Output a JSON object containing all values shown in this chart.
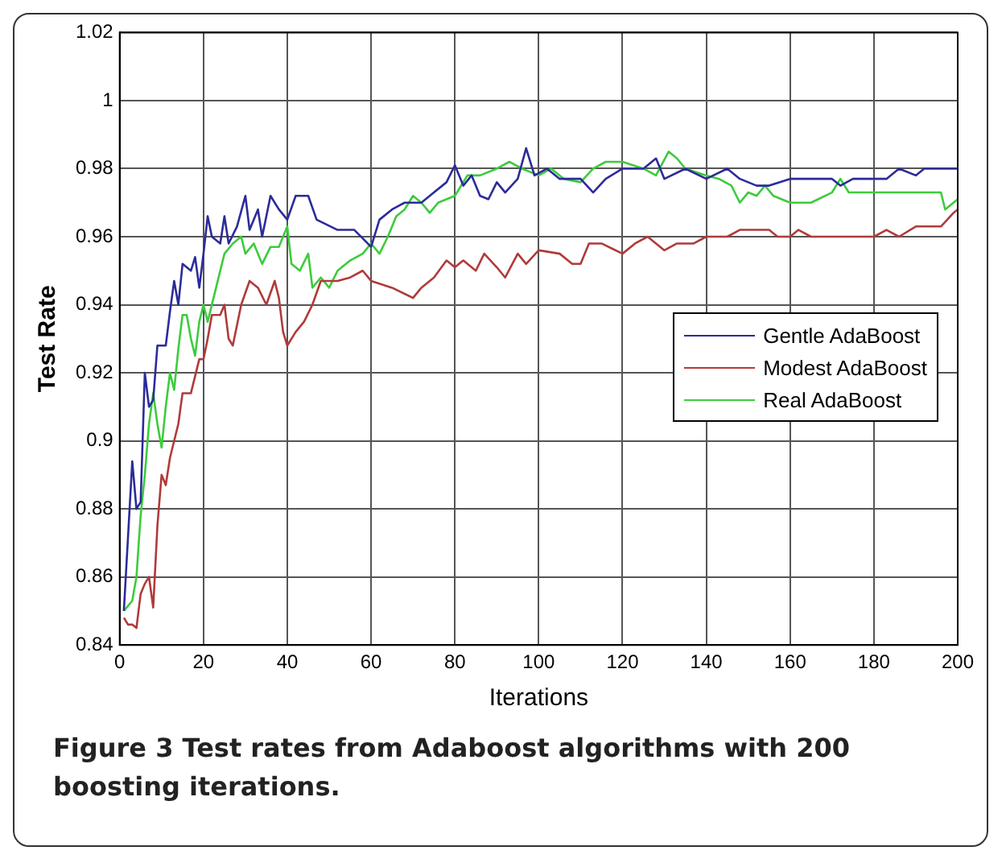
{
  "chart_data": {
    "type": "line",
    "xlabel": "Iterations",
    "ylabel": "Test Rate",
    "annotations": [
      "Figure 3 Test rates from Adaboost algorithms with 200 boosting iterations."
    ],
    "xlim": [
      0,
      200
    ],
    "xticks": [
      0,
      20,
      40,
      60,
      80,
      100,
      120,
      140,
      160,
      180,
      200
    ],
    "ylim": [
      0.84,
      1.02
    ],
    "yticks": [
      0.84,
      0.86,
      0.88,
      0.9,
      0.92,
      0.94,
      0.96,
      0.98,
      1,
      1.02
    ],
    "grid": true,
    "legend": "right",
    "marker": "none",
    "line_style": "solid",
    "series": [
      {
        "name": "Gentle AdaBoost",
        "color": "#2b2b9a",
        "x": [
          1,
          3,
          4,
          5,
          6,
          7,
          8,
          9,
          11,
          12,
          13,
          14,
          15,
          17,
          18,
          19,
          20,
          21,
          22,
          24,
          25,
          26,
          28,
          30,
          31,
          33,
          34,
          36,
          38,
          40,
          42,
          45,
          47,
          52,
          56,
          60,
          62,
          65,
          68,
          72,
          75,
          78,
          80,
          82,
          84,
          86,
          88,
          90,
          92,
          95,
          97,
          99,
          102,
          105,
          110,
          113,
          116,
          120,
          125,
          128,
          130,
          135,
          140,
          145,
          148,
          152,
          155,
          160,
          170,
          172,
          175,
          183,
          186,
          190,
          192,
          200
        ],
        "values": [
          0.85,
          0.894,
          0.88,
          0.882,
          0.92,
          0.91,
          0.912,
          0.928,
          0.928,
          0.938,
          0.947,
          0.94,
          0.952,
          0.95,
          0.954,
          0.945,
          0.955,
          0.966,
          0.96,
          0.958,
          0.966,
          0.958,
          0.963,
          0.972,
          0.962,
          0.968,
          0.96,
          0.972,
          0.968,
          0.965,
          0.972,
          0.972,
          0.965,
          0.962,
          0.962,
          0.957,
          0.965,
          0.968,
          0.97,
          0.97,
          0.973,
          0.976,
          0.981,
          0.975,
          0.978,
          0.972,
          0.971,
          0.976,
          0.973,
          0.977,
          0.986,
          0.978,
          0.98,
          0.977,
          0.977,
          0.973,
          0.977,
          0.98,
          0.98,
          0.983,
          0.977,
          0.98,
          0.977,
          0.98,
          0.977,
          0.975,
          0.975,
          0.977,
          0.977,
          0.975,
          0.977,
          0.977,
          0.98,
          0.978,
          0.98,
          0.98
        ]
      },
      {
        "name": "Modest AdaBoost",
        "color": "#b03a3a",
        "x": [
          1,
          2,
          3,
          4,
          5,
          6,
          7,
          8,
          9,
          10,
          11,
          12,
          14,
          15,
          17,
          19,
          20,
          21,
          22,
          24,
          25,
          26,
          27,
          29,
          31,
          33,
          35,
          37,
          38,
          39,
          40,
          42,
          44,
          46,
          48,
          52,
          55,
          58,
          60,
          65,
          70,
          72,
          75,
          78,
          80,
          82,
          85,
          87,
          90,
          92,
          95,
          97,
          100,
          105,
          108,
          110,
          112,
          115,
          120,
          123,
          126,
          130,
          133,
          137,
          140,
          145,
          148,
          155,
          157,
          160,
          162,
          165,
          180,
          183,
          186,
          190,
          196,
          199,
          200
        ],
        "values": [
          0.848,
          0.846,
          0.846,
          0.845,
          0.855,
          0.858,
          0.86,
          0.851,
          0.875,
          0.89,
          0.887,
          0.895,
          0.905,
          0.914,
          0.914,
          0.924,
          0.924,
          0.93,
          0.937,
          0.937,
          0.94,
          0.93,
          0.928,
          0.94,
          0.947,
          0.945,
          0.94,
          0.947,
          0.942,
          0.932,
          0.928,
          0.932,
          0.935,
          0.94,
          0.947,
          0.947,
          0.948,
          0.95,
          0.947,
          0.945,
          0.942,
          0.945,
          0.948,
          0.953,
          0.951,
          0.953,
          0.95,
          0.955,
          0.951,
          0.948,
          0.955,
          0.952,
          0.956,
          0.955,
          0.952,
          0.952,
          0.958,
          0.958,
          0.955,
          0.958,
          0.96,
          0.956,
          0.958,
          0.958,
          0.96,
          0.96,
          0.962,
          0.962,
          0.96,
          0.96,
          0.962,
          0.96,
          0.96,
          0.962,
          0.96,
          0.963,
          0.963,
          0.967,
          0.968
        ]
      },
      {
        "name": "Real AdaBoost",
        "color": "#3ccc3c",
        "x": [
          1,
          3,
          4,
          5,
          6,
          7,
          8,
          9,
          10,
          11,
          12,
          13,
          14,
          15,
          16,
          17,
          18,
          19,
          20,
          21,
          23,
          24,
          25,
          27,
          29,
          30,
          32,
          34,
          36,
          38,
          40,
          41,
          43,
          45,
          46,
          48,
          50,
          52,
          55,
          58,
          60,
          62,
          64,
          66,
          68,
          70,
          72,
          74,
          76,
          80,
          83,
          86,
          90,
          93,
          96,
          100,
          103,
          106,
          110,
          113,
          116,
          120,
          125,
          128,
          131,
          133,
          135,
          140,
          143,
          146,
          148,
          150,
          152,
          154,
          156,
          160,
          165,
          170,
          172,
          174,
          180,
          190,
          196,
          197,
          200
        ],
        "values": [
          0.85,
          0.853,
          0.86,
          0.878,
          0.89,
          0.905,
          0.914,
          0.905,
          0.898,
          0.91,
          0.92,
          0.915,
          0.927,
          0.937,
          0.937,
          0.93,
          0.925,
          0.935,
          0.94,
          0.935,
          0.945,
          0.95,
          0.955,
          0.958,
          0.96,
          0.955,
          0.958,
          0.952,
          0.957,
          0.957,
          0.963,
          0.952,
          0.95,
          0.955,
          0.945,
          0.948,
          0.945,
          0.95,
          0.953,
          0.955,
          0.958,
          0.955,
          0.96,
          0.966,
          0.968,
          0.972,
          0.97,
          0.967,
          0.97,
          0.972,
          0.978,
          0.978,
          0.98,
          0.982,
          0.98,
          0.978,
          0.98,
          0.977,
          0.976,
          0.98,
          0.982,
          0.982,
          0.98,
          0.978,
          0.985,
          0.983,
          0.98,
          0.978,
          0.977,
          0.975,
          0.97,
          0.973,
          0.972,
          0.975,
          0.972,
          0.97,
          0.97,
          0.973,
          0.977,
          0.973,
          0.973,
          0.973,
          0.973,
          0.968,
          0.971
        ]
      }
    ]
  }
}
